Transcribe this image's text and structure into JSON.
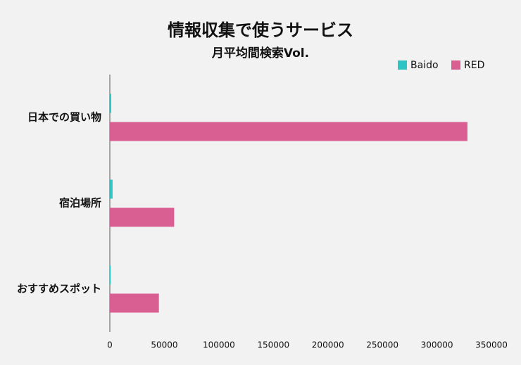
{
  "chart_data": {
    "type": "hbar",
    "title": "情報収集で使うサービス",
    "subtitle": "月平均間検索Vol.",
    "categories": [
      "日本での買い物",
      "宿泊場所",
      "おすすめスポット"
    ],
    "series": [
      {
        "name": "Baido",
        "color": "#2ec4c4",
        "values": [
          1300,
          2500,
          800
        ]
      },
      {
        "name": "RED",
        "color": "#d95f93",
        "values": [
          328000,
          59000,
          45000
        ]
      }
    ],
    "xlim": [
      0,
      350000
    ],
    "xticks": [
      0,
      50000,
      100000,
      150000,
      200000,
      250000,
      300000,
      350000
    ]
  }
}
